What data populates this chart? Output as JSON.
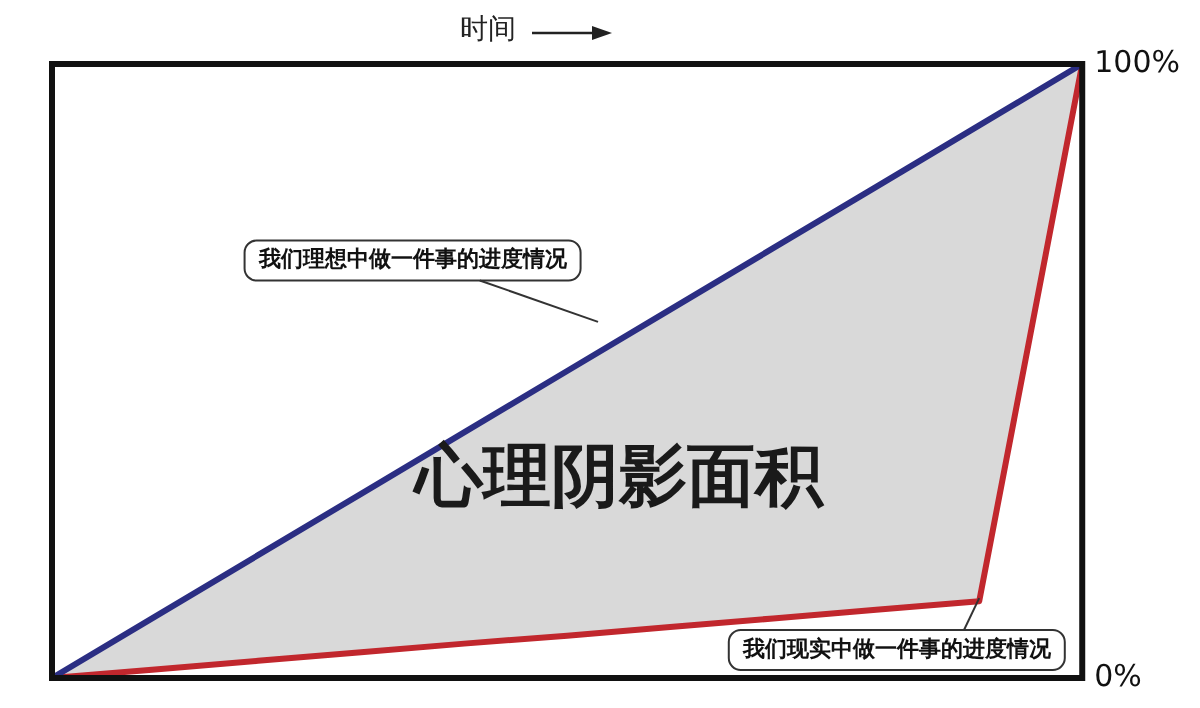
{
  "chart_data": {
    "type": "line",
    "xlabel": "时间",
    "categories": [
      null,
      null,
      null,
      null,
      null,
      null,
      null,
      null,
      null,
      null,
      null
    ],
    "series": [
      {
        "color": "#2b2e83",
        "values": [
          0,
          10,
          20,
          30,
          40,
          50,
          60,
          70,
          80,
          90,
          100
        ]
      },
      {
        "color": "#c1272d",
        "values": [
          0,
          1.4,
          2.8,
          4.2,
          5.6,
          6.9,
          8.3,
          9.7,
          11.1,
          12.5,
          100
        ]
      }
    ],
    "ylim": [
      0,
      100
    ],
    "yticks": [
      {
        "value": 0,
        "label": "0%"
      },
      {
        "value": 100,
        "label": "100%"
      }
    ],
    "tick_labels": "y",
    "grid": false,
    "legend": false,
    "marker": "none",
    "line_style": "solid",
    "annotations": [
      "我们理想中做一件事的进度情况",
      "我们现实中做一件事的进度情况",
      "心理阴影面积"
    ]
  }
}
